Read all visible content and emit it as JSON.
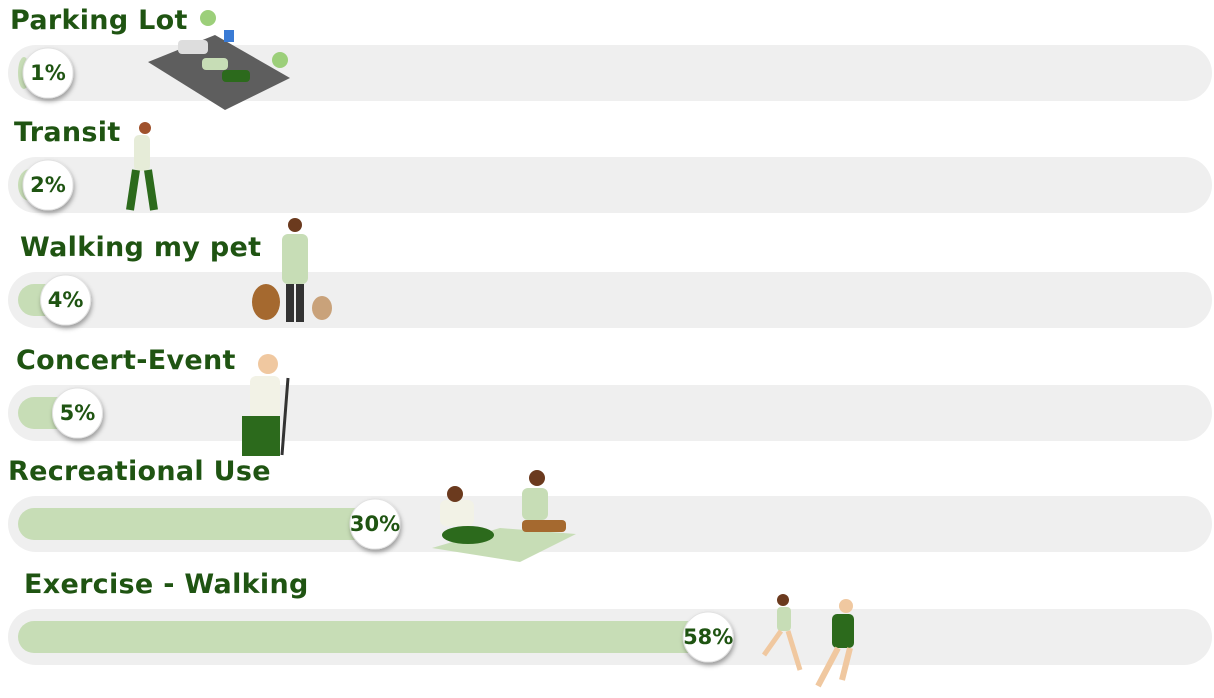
{
  "chart_data": {
    "type": "bar",
    "categories": [
      "Parking Lot",
      "Transit",
      "Walking my pet",
      "Concert-Event",
      "Recreational Use",
      "Exercise - Walking"
    ],
    "values": [
      1,
      2,
      4,
      5,
      30,
      58
    ],
    "value_labels": [
      "1%",
      "2%",
      "4%",
      "5%",
      "30%",
      "58%"
    ],
    "color": "#c7ddb6",
    "xlim": [
      0,
      100
    ]
  }
}
